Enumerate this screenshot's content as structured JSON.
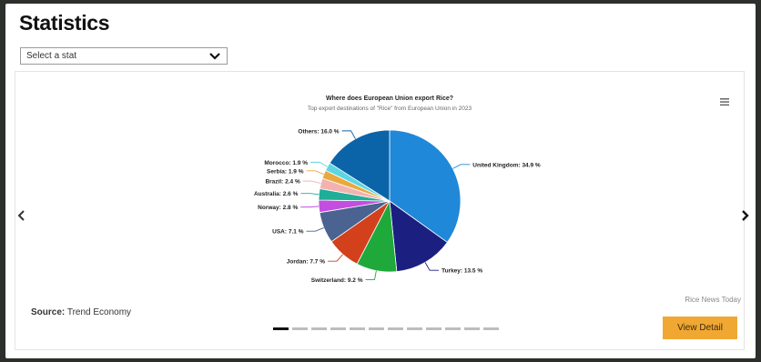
{
  "page": {
    "title": "Statistics",
    "select_placeholder": "Select a stat",
    "source_label": "Source:",
    "source_value": "Trend Economy",
    "credit": "Rice News Today",
    "view_button": "View Detail"
  },
  "carousel": {
    "slide_count": 12,
    "active_index": 0
  },
  "icons": {
    "select": "chevron-down-icon",
    "menu": "menu-icon",
    "prev": "chevron-left-icon",
    "next": "chevron-right-icon"
  },
  "colors": {
    "button": "#f0a833"
  },
  "chart_data": {
    "type": "pie",
    "title": "Where does European Union export Rice?",
    "subtitle": "Top export destinations of \"Rice\" from European Union in 2023",
    "slices": [
      {
        "label": "United Kingdom",
        "value": 34.9,
        "display": "United Kingdom: 34.9 %",
        "color": "#1f88d8"
      },
      {
        "label": "Turkey",
        "value": 13.5,
        "display": "Turkey: 13.5 %",
        "color": "#1b1f80"
      },
      {
        "label": "Switzerland",
        "value": 9.2,
        "display": "Switzerland: 9.2 %",
        "color": "#1ea93a"
      },
      {
        "label": "Jordan",
        "value": 7.7,
        "display": "Jordan: 7.7 %",
        "color": "#d2401c"
      },
      {
        "label": "USA",
        "value": 7.1,
        "display": "USA: 7.1 %",
        "color": "#4a6390"
      },
      {
        "label": "Norway",
        "value": 2.8,
        "display": "Norway: 2.8 %",
        "color": "#c34ee0"
      },
      {
        "label": "Australia",
        "value": 2.6,
        "display": "Australia: 2.6 %",
        "color": "#1fae98"
      },
      {
        "label": "Brazil",
        "value": 2.4,
        "display": "Brazil: 2.4 %",
        "color": "#f2b3b0"
      },
      {
        "label": "Serbia",
        "value": 1.9,
        "display": "Serbia: 1.9 %",
        "color": "#e9a93f"
      },
      {
        "label": "Morocco",
        "value": 1.9,
        "display": "Morocco: 1.9 %",
        "color": "#5dd6e2"
      },
      {
        "label": "Others",
        "value": 16.0,
        "display": "Others: 16.0 %",
        "color": "#0c64a8"
      }
    ]
  }
}
